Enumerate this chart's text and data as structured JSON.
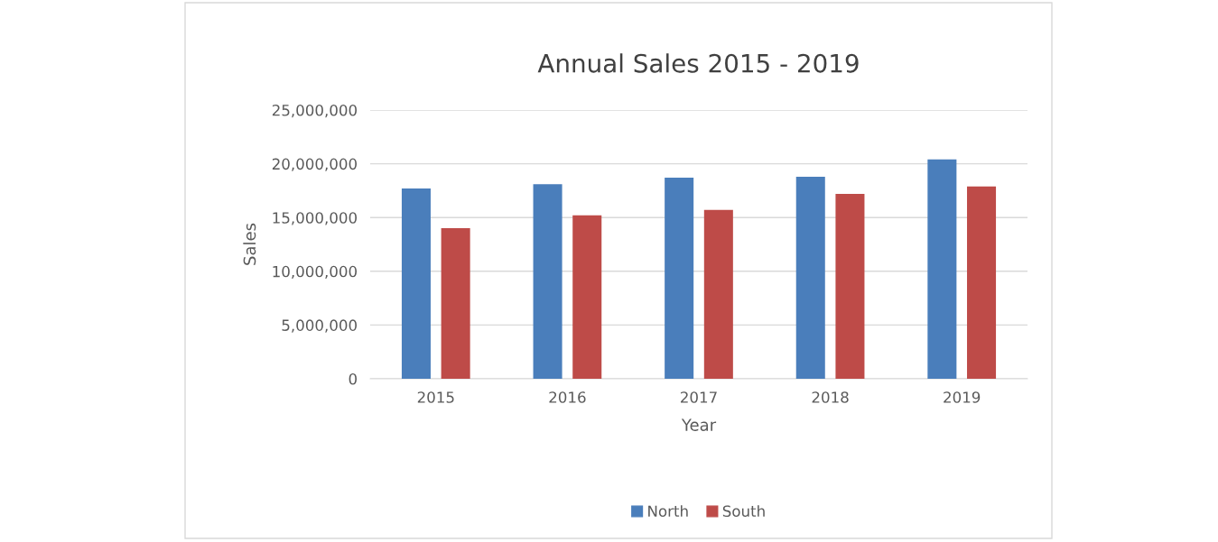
{
  "chart_data": {
    "type": "bar",
    "title": "Annual Sales 2015 - 2019",
    "xlabel": "Year",
    "ylabel": "Sales",
    "categories": [
      "2015",
      "2016",
      "2017",
      "2018",
      "2019"
    ],
    "series": [
      {
        "name": "North",
        "color": "#4a7ebb",
        "values": [
          17700000,
          18100000,
          18700000,
          18800000,
          20400000
        ]
      },
      {
        "name": "South",
        "color": "#be4b48",
        "values": [
          14000000,
          15200000,
          15700000,
          17200000,
          17900000
        ]
      }
    ],
    "ylim": [
      0,
      25000000
    ],
    "yticks": [
      {
        "value": 0,
        "label": "0"
      },
      {
        "value": 5000000,
        "label": "5,000,000"
      },
      {
        "value": 10000000,
        "label": "10,000,000"
      },
      {
        "value": 15000000,
        "label": "15,000,000"
      },
      {
        "value": 20000000,
        "label": "20,000,000"
      },
      {
        "value": 25000000,
        "label": "25,000,000"
      }
    ],
    "grid": "y",
    "legend": "bottom"
  }
}
